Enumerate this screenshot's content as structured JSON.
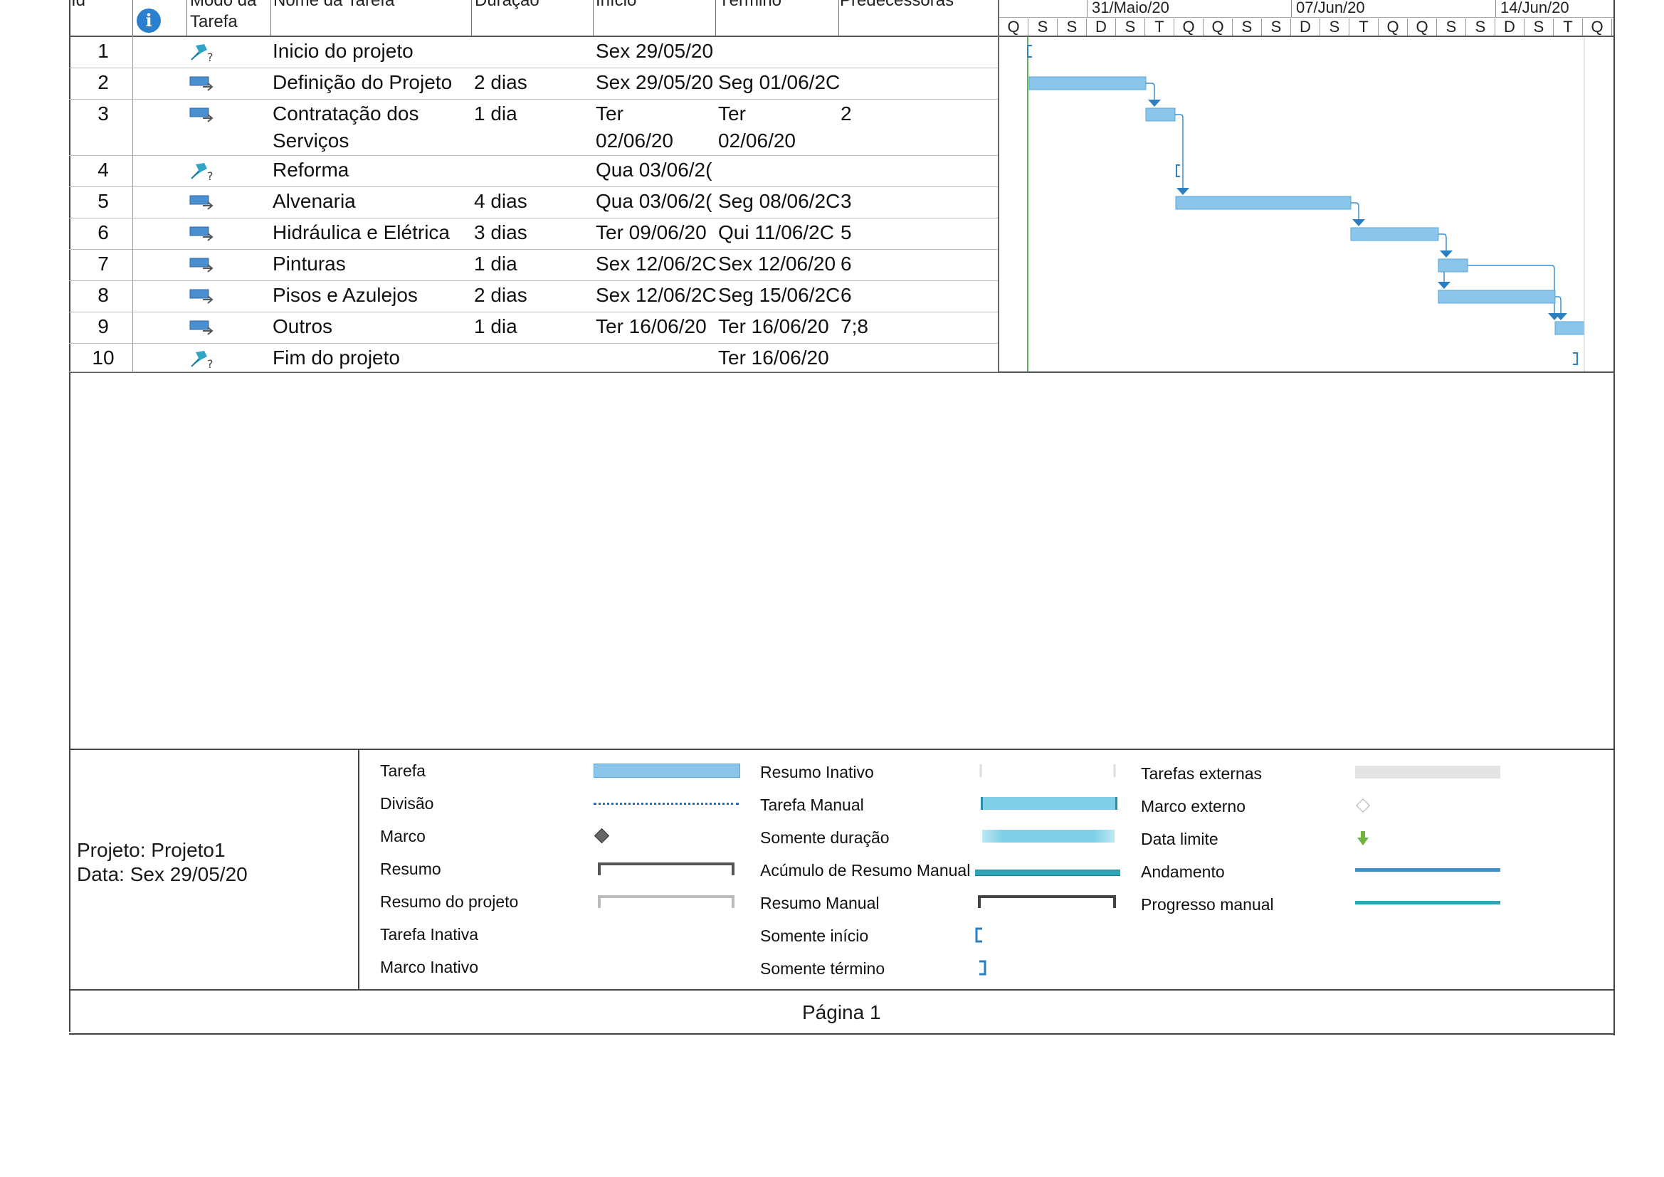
{
  "columns": {
    "id": "Id",
    "mode_line1": "Modo da",
    "mode_line2": "Tarefa",
    "name": "Nome da Tarefa",
    "duration": "Duração",
    "start": "Início",
    "finish": "Término",
    "predecessors": "Predecessoras"
  },
  "timescale": {
    "weeks": [
      "31/Maio/20",
      "07/Jun/20",
      "14/Jun/20"
    ],
    "days": [
      "Q",
      "S",
      "S",
      "D",
      "S",
      "T",
      "Q",
      "Q",
      "S",
      "S",
      "D",
      "S",
      "T",
      "Q",
      "Q",
      "S",
      "S",
      "D",
      "S",
      "T",
      "Q"
    ]
  },
  "tasks": [
    {
      "id": "1",
      "name": "Inicio do projeto",
      "name2": "",
      "duration": "",
      "start": "Sex 29/05/20",
      "start2": "",
      "finish": "",
      "finish2": "",
      "pred": "",
      "mode": "manual"
    },
    {
      "id": "2",
      "name": "Definição do Projeto",
      "name2": "",
      "duration": "2 dias",
      "start": "Sex 29/05/20",
      "start2": "",
      "finish": "Seg 01/06/2C",
      "finish2": "",
      "pred": "",
      "mode": "auto"
    },
    {
      "id": "3",
      "name": "Contratação dos",
      "name2": "Serviços",
      "duration": "1 dia",
      "start": "Ter",
      "start2": "02/06/20",
      "finish": "Ter",
      "finish2": "02/06/20",
      "pred": "2",
      "mode": "auto"
    },
    {
      "id": "4",
      "name": "Reforma",
      "name2": "",
      "duration": "",
      "start": "Qua 03/06/2(",
      "start2": "",
      "finish": "",
      "finish2": "",
      "pred": "",
      "mode": "manual"
    },
    {
      "id": "5",
      "name": "Alvenaria",
      "name2": "",
      "duration": "4 dias",
      "start": "Qua 03/06/2(",
      "start2": "",
      "finish": "Seg 08/06/2C",
      "finish2": "",
      "pred": "3",
      "mode": "auto"
    },
    {
      "id": "6",
      "name": "Hidráulica e Elétrica",
      "name2": "",
      "duration": "3 dias",
      "start": "Ter 09/06/20",
      "start2": "",
      "finish": "Qui 11/06/2C",
      "finish2": "",
      "pred": "5",
      "mode": "auto"
    },
    {
      "id": "7",
      "name": "Pinturas",
      "name2": "",
      "duration": "1 dia",
      "start": "Sex 12/06/2C",
      "start2": "",
      "finish": "Sex 12/06/20",
      "finish2": "",
      "pred": "6",
      "mode": "auto"
    },
    {
      "id": "8",
      "name": "Pisos e Azulejos",
      "name2": "",
      "duration": "2 dias",
      "start": "Sex 12/06/2C",
      "start2": "",
      "finish": "Seg 15/06/2C",
      "finish2": "",
      "pred": "6",
      "mode": "auto"
    },
    {
      "id": "9",
      "name": "Outros",
      "name2": "",
      "duration": "1 dia",
      "start": "Ter 16/06/20",
      "start2": "",
      "finish": "Ter 16/06/20",
      "finish2": "",
      "pred": "7;8",
      "mode": "auto"
    },
    {
      "id": "10",
      "name": "Fim do projeto",
      "name2": "",
      "duration": "",
      "start": "",
      "start2": "",
      "finish": "Ter 16/06/20",
      "finish2": "",
      "pred": "",
      "mode": "manual"
    }
  ],
  "project": {
    "line1": "Projeto: Projeto1",
    "line2": "Data: Sex 29/05/20"
  },
  "legend": {
    "col1": [
      "Tarefa",
      "Divisão",
      "Marco",
      "Resumo",
      "Resumo do projeto",
      "Tarefa Inativa",
      "Marco Inativo"
    ],
    "col2": [
      "Resumo Inativo",
      "Tarefa Manual",
      "Somente duração",
      "Acúmulo de Resumo Manual",
      "Resumo Manual",
      "Somente início",
      "Somente término"
    ],
    "col3": [
      "Tarefas externas",
      "Marco externo",
      "Data limite",
      "Andamento",
      "Progresso manual"
    ]
  },
  "footer": {
    "page": "Página 1"
  },
  "colors": {
    "task_bar": "#8cc5ea",
    "manual_task": "#7fd0e6",
    "progress": "#3f8fc9",
    "manual_progress": "#2fa5b8",
    "deadline": "#6db33f",
    "link": "#3c8fd0",
    "today_line": "#5fae5f"
  }
}
